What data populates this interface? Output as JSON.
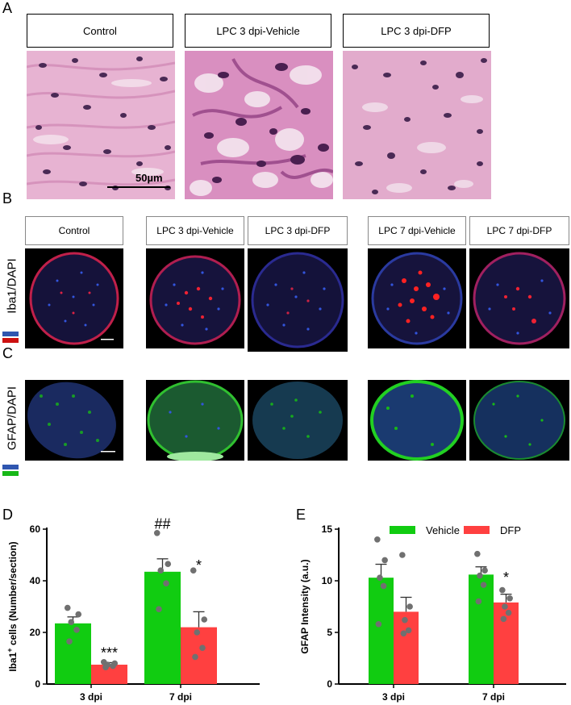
{
  "panels": {
    "A": {
      "letter": "A",
      "labels": [
        "Control",
        "LPC 3 dpi-Vehicle",
        "LPC 3 dpi-DFP"
      ],
      "scale_bar": "50µm"
    },
    "B": {
      "letter": "B",
      "labels": [
        "Control",
        "LPC 3 dpi-Vehicle",
        "LPC 3 dpi-DFP",
        "LPC 7 dpi-Vehicle",
        "LPC 7 dpi-DFP"
      ],
      "stain_label": "Iba1/DAPI",
      "stain_colors": [
        "#2f56b0",
        "#cc1010"
      ]
    },
    "C": {
      "letter": "C",
      "stain_label": "GFAP/DAPI",
      "stain_colors": [
        "#2f56b0",
        "#18b818"
      ]
    },
    "D": {
      "letter": "D"
    },
    "E": {
      "letter": "E"
    }
  },
  "colors": {
    "vehicle": "#11cc11",
    "dfp": "#ff4040",
    "points": "#707070",
    "he_pink": "#e3a4c8",
    "he_nucleus": "#4a2a55"
  },
  "chart_data": [
    {
      "id": "D",
      "type": "bar",
      "categories": [
        "3 dpi",
        "7 dpi"
      ],
      "ylabel": "Iba1+ cells (Number/section)",
      "ylabel_main": "Iba1",
      "ylabel_sup": "+",
      "ylabel_rest": " cells (Number/section)",
      "ylim": [
        0,
        60
      ],
      "yticks": [
        0,
        20,
        40,
        60
      ],
      "series": [
        {
          "values": [
            23.5,
            43.5
          ],
          "errors": [
            2.5,
            5.0
          ],
          "points": [
            [
              29.5,
              27.0,
              24.0,
              21.0,
              16.5
            ],
            [
              58.5,
              46.5,
              44.0,
              39.0,
              29.0
            ]
          ]
        },
        {
          "values": [
            7.5,
            22.0
          ],
          "errors": [
            0.8,
            6.0
          ],
          "points": [
            [
              8.5,
              8.0,
              7.5,
              7.0,
              6.5
            ],
            [
              44.0,
              25.0,
              20.0,
              14.0,
              10.5
            ]
          ]
        }
      ],
      "annotations": [
        {
          "text": "***",
          "series": 1,
          "category": 0,
          "y": 12
        },
        {
          "text": "*",
          "series": 1,
          "category": 1,
          "y": 46
        },
        {
          "text": "##",
          "series": 0,
          "category": 1,
          "y": 62
        }
      ]
    },
    {
      "id": "E",
      "type": "bar",
      "categories": [
        "3 dpi",
        "7 dpi"
      ],
      "ylabel": "GFAP Intensity (a.u.)",
      "ylim": [
        0,
        15
      ],
      "yticks": [
        0,
        5,
        10,
        15
      ],
      "legend": {
        "labels": [
          "Vehicle",
          "DFP"
        ],
        "position": "top"
      },
      "series": [
        {
          "name": "Vehicle",
          "values": [
            10.3,
            10.6
          ],
          "errors": [
            1.3,
            0.75
          ],
          "points": [
            [
              14.0,
              12.0,
              10.3,
              9.5,
              5.8
            ],
            [
              12.6,
              11.0,
              10.5,
              9.6,
              8.0
            ]
          ]
        },
        {
          "name": "DFP",
          "values": [
            7.0,
            7.9
          ],
          "errors": [
            1.4,
            0.8
          ],
          "points": [
            [
              12.5,
              7.5,
              6.2,
              5.2,
              4.9
            ],
            [
              9.1,
              8.3,
              7.5,
              6.9,
              6.3
            ]
          ]
        }
      ],
      "annotations": [
        {
          "text": "*",
          "series": 1,
          "category": 1,
          "y": 10.3
        }
      ]
    }
  ]
}
